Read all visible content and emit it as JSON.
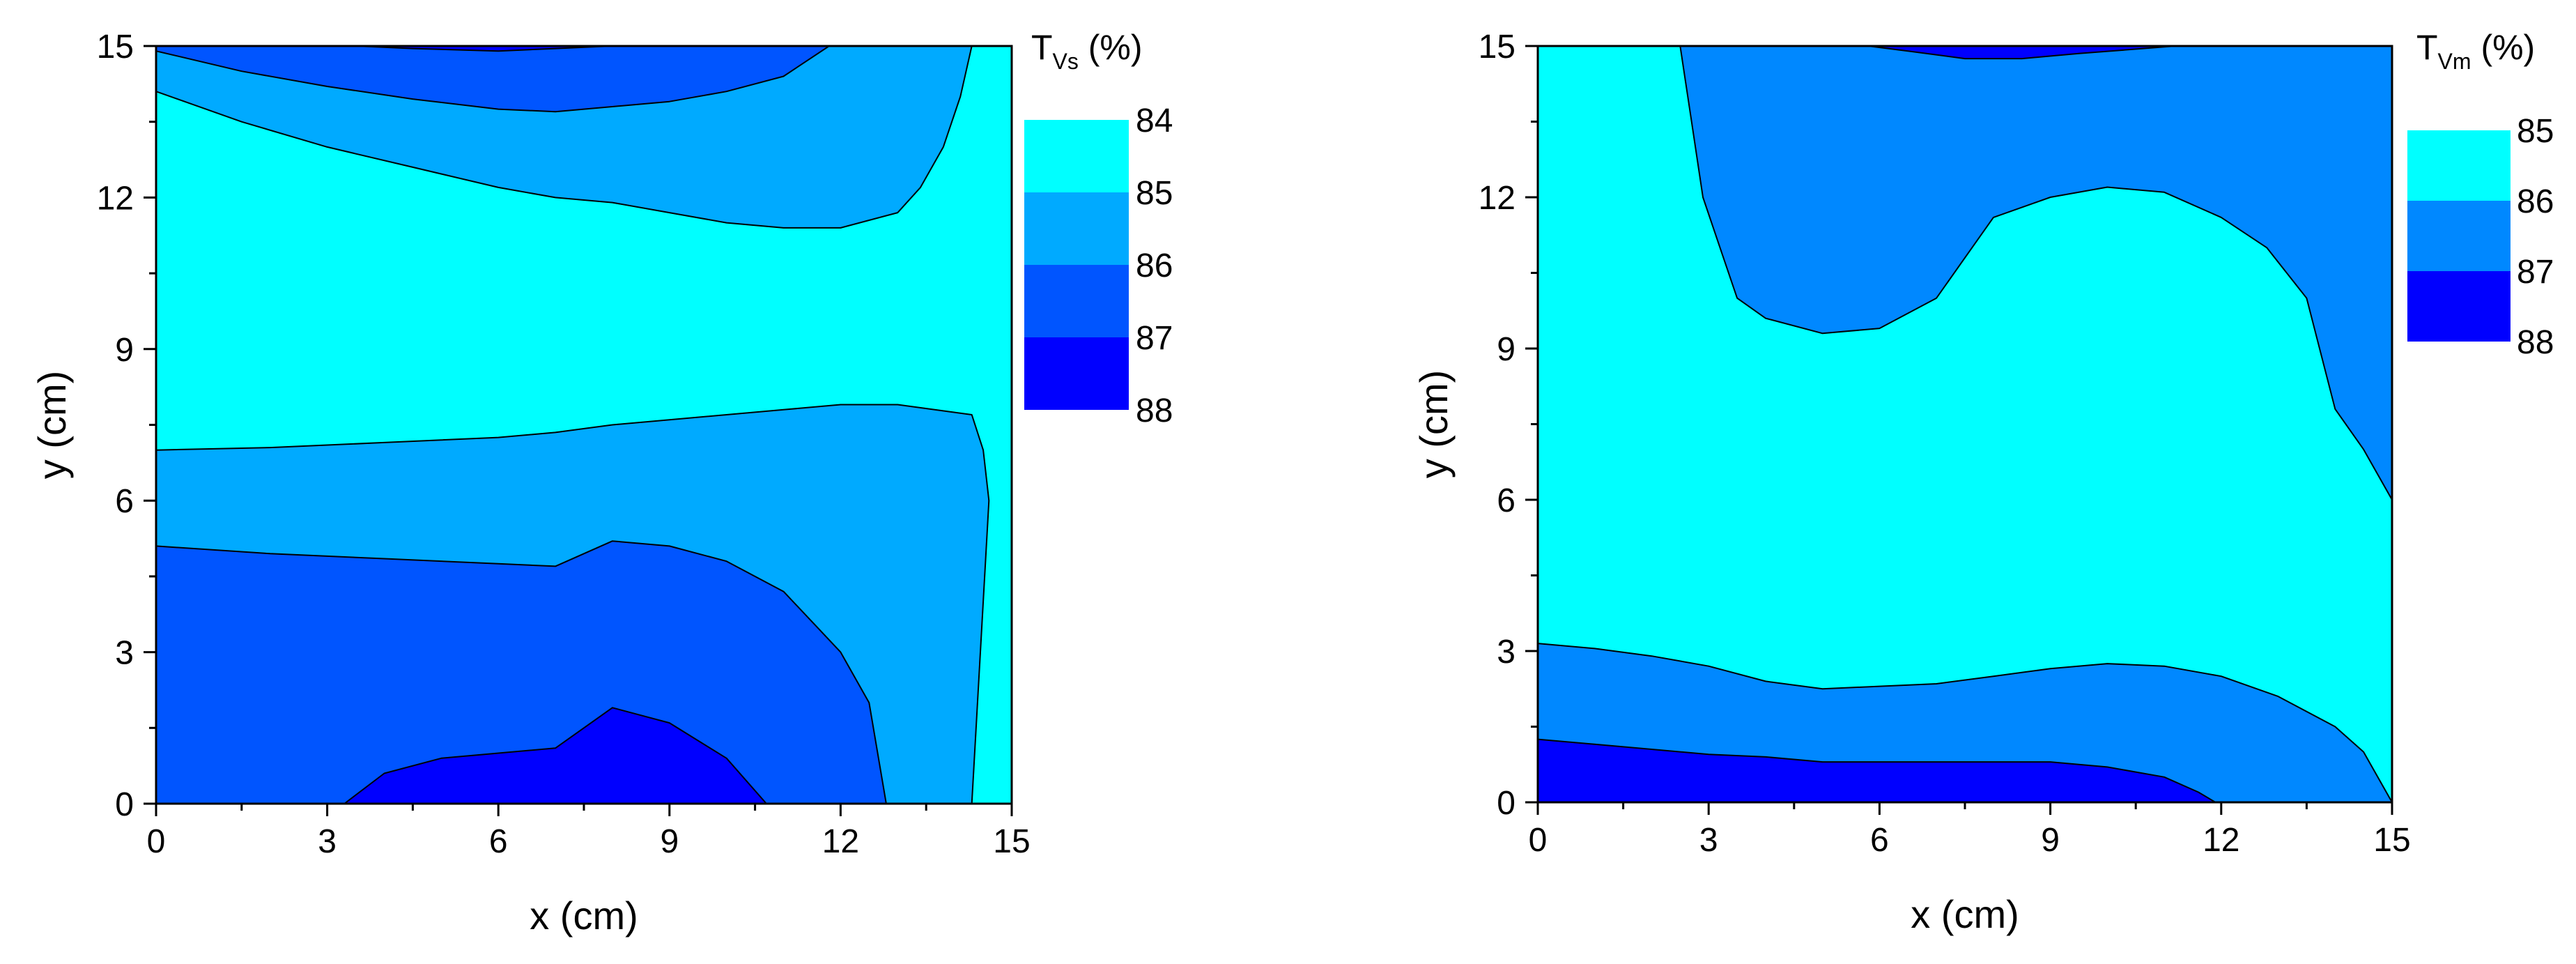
{
  "chart_data": [
    {
      "type": "contour",
      "xlabel": "x (cm)",
      "ylabel": "y (cm)",
      "xlim": [
        0,
        15
      ],
      "ylim": [
        0,
        15
      ],
      "xticks": [
        "0",
        "3",
        "6",
        "9",
        "12",
        "15"
      ],
      "yticks": [
        "0",
        "3",
        "6",
        "9",
        "12",
        "15"
      ],
      "colorbar": {
        "title_main": "T",
        "title_sub": "Vs",
        "title_suffix": " (%)",
        "levels": [
          "84",
          "85",
          "86",
          "87",
          "88"
        ],
        "colors": [
          "#00ffff",
          "#00aaff",
          "#0055ff",
          "#0000ff"
        ]
      },
      "background_color": "#00ffff",
      "regions": [
        {
          "level_index": 1,
          "color": "#00aaff",
          "points": [
            [
              0,
              14.1
            ],
            [
              1.5,
              13.5
            ],
            [
              3,
              13
            ],
            [
              4.5,
              12.6
            ],
            [
              6,
              12.2
            ],
            [
              7,
              12
            ],
            [
              8,
              11.9
            ],
            [
              9,
              11.7
            ],
            [
              10,
              11.5
            ],
            [
              11,
              11.4
            ],
            [
              12,
              11.4
            ],
            [
              13,
              11.7
            ],
            [
              13.4,
              12.2
            ],
            [
              13.8,
              13
            ],
            [
              14.1,
              14
            ],
            [
              14.3,
              15
            ],
            [
              0,
              15
            ]
          ]
        },
        {
          "level_index": 1,
          "color": "#00aaff",
          "points": [
            [
              0,
              0
            ],
            [
              14.3,
              0
            ],
            [
              14.4,
              2
            ],
            [
              14.5,
              4
            ],
            [
              14.6,
              6
            ],
            [
              14.5,
              7
            ],
            [
              14.3,
              7.7
            ],
            [
              13,
              7.9
            ],
            [
              12,
              7.9
            ],
            [
              11,
              7.8
            ],
            [
              10,
              7.7
            ],
            [
              9,
              7.6
            ],
            [
              8,
              7.5
            ],
            [
              7,
              7.35
            ],
            [
              6,
              7.25
            ],
            [
              4,
              7.15
            ],
            [
              2,
              7.05
            ],
            [
              0,
              7
            ]
          ]
        },
        {
          "level_index": 2,
          "color": "#0055ff",
          "points": [
            [
              0,
              14.9
            ],
            [
              1.5,
              14.5
            ],
            [
              3,
              14.2
            ],
            [
              4.5,
              13.95
            ],
            [
              6,
              13.75
            ],
            [
              7,
              13.7
            ],
            [
              8,
              13.8
            ],
            [
              9,
              13.9
            ],
            [
              10,
              14.1
            ],
            [
              11,
              14.4
            ],
            [
              11.8,
              15
            ],
            [
              0,
              15
            ]
          ]
        },
        {
          "level_index": 2,
          "color": "#0055ff",
          "points": [
            [
              0,
              0
            ],
            [
              12.8,
              0
            ],
            [
              12.5,
              2
            ],
            [
              12,
              3
            ],
            [
              11.5,
              3.6
            ],
            [
              11,
              4.2
            ],
            [
              10,
              4.8
            ],
            [
              9,
              5.1
            ],
            [
              8,
              5.2
            ],
            [
              7,
              4.7
            ],
            [
              6,
              4.75
            ],
            [
              4,
              4.85
            ],
            [
              2,
              4.95
            ],
            [
              0,
              5.1
            ]
          ]
        },
        {
          "level_index": 3,
          "color": "#0000ff",
          "points": [
            [
              3.5,
              15
            ],
            [
              4.5,
              14.95
            ],
            [
              6,
              14.9
            ],
            [
              7,
              14.95
            ],
            [
              8,
              15
            ]
          ]
        },
        {
          "level_index": 3,
          "color": "#0000ff",
          "points": [
            [
              3.3,
              0
            ],
            [
              10.7,
              0
            ],
            [
              10,
              0.9
            ],
            [
              9,
              1.6
            ],
            [
              8,
              1.9
            ],
            [
              7,
              1.1
            ],
            [
              6,
              1.0
            ],
            [
              5,
              0.9
            ],
            [
              4,
              0.6
            ]
          ]
        }
      ]
    },
    {
      "type": "contour",
      "xlabel": "x (cm)",
      "ylabel": "y (cm)",
      "xlim": [
        0,
        15
      ],
      "ylim": [
        0,
        15
      ],
      "xticks": [
        "0",
        "3",
        "6",
        "9",
        "12",
        "15"
      ],
      "yticks": [
        "0",
        "3",
        "6",
        "9",
        "12",
        "15"
      ],
      "colorbar": {
        "title_main": "T",
        "title_sub": "Vm",
        "title_suffix": " (%)",
        "levels": [
          "85",
          "86",
          "87",
          "88"
        ],
        "colors": [
          "#00ffff",
          "#0088ff",
          "#0000ff"
        ]
      },
      "background_color": "#00ffff",
      "regions": [
        {
          "level_index": 1,
          "color": "#0088ff",
          "points": [
            [
              2.5,
              15
            ],
            [
              15,
              15
            ],
            [
              15,
              6
            ],
            [
              14.5,
              7
            ],
            [
              14,
              7.8
            ],
            [
              13.5,
              10
            ],
            [
              12.8,
              11
            ],
            [
              12,
              11.6
            ],
            [
              11,
              12.1
            ],
            [
              10,
              12.2
            ],
            [
              9,
              12
            ],
            [
              8,
              11.6
            ],
            [
              7,
              10
            ],
            [
              6,
              9.4
            ],
            [
              5,
              9.3
            ],
            [
              4,
              9.6
            ],
            [
              3.5,
              10
            ],
            [
              3.2,
              11
            ],
            [
              2.9,
              12
            ],
            [
              2.7,
              13.5
            ]
          ]
        },
        {
          "level_index": 1,
          "color": "#0088ff",
          "points": [
            [
              0,
              0
            ],
            [
              15,
              0
            ],
            [
              14.5,
              1
            ],
            [
              14,
              1.5
            ],
            [
              13,
              2.1
            ],
            [
              12,
              2.5
            ],
            [
              11,
              2.7
            ],
            [
              10,
              2.75
            ],
            [
              9,
              2.65
            ],
            [
              8,
              2.5
            ],
            [
              7,
              2.35
            ],
            [
              6,
              2.3
            ],
            [
              5,
              2.25
            ],
            [
              4,
              2.4
            ],
            [
              3,
              2.7
            ],
            [
              2,
              2.9
            ],
            [
              1,
              3.05
            ],
            [
              0,
              3.15
            ]
          ]
        },
        {
          "level_index": 2,
          "color": "#0000ff",
          "points": [
            [
              5.8,
              15
            ],
            [
              6.5,
              14.9
            ],
            [
              7.5,
              14.75
            ],
            [
              8.5,
              14.75
            ],
            [
              9.5,
              14.85
            ],
            [
              11.2,
              15
            ]
          ]
        },
        {
          "level_index": 2,
          "color": "#0000ff",
          "points": [
            [
              0,
              0
            ],
            [
              11.9,
              0
            ],
            [
              11.6,
              0.2
            ],
            [
              11,
              0.5
            ],
            [
              10,
              0.7
            ],
            [
              9,
              0.8
            ],
            [
              8,
              0.8
            ],
            [
              7,
              0.8
            ],
            [
              6,
              0.8
            ],
            [
              5,
              0.8
            ],
            [
              4,
              0.9
            ],
            [
              3,
              0.95
            ],
            [
              2,
              1.05
            ],
            [
              1,
              1.15
            ],
            [
              0,
              1.25
            ]
          ]
        }
      ]
    }
  ]
}
